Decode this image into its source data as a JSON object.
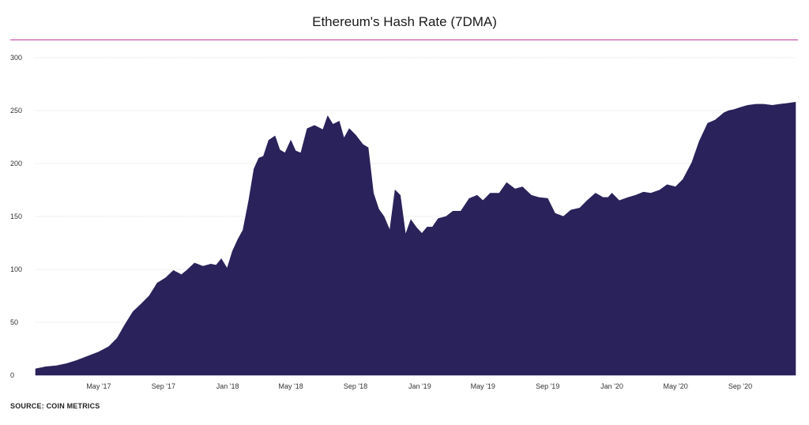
{
  "chart_title": "Ethereum's Hash Rate (7DMA)",
  "source": "SOURCE: COIN METRICS",
  "colors": {
    "area": "#2a225a",
    "title_rule": "#c23aa0",
    "grid": "#e2e2e2",
    "tick_text": "#333333"
  },
  "chart_data": {
    "type": "area",
    "title": "Ethereum's Hash Rate (7DMA)",
    "xlabel": "",
    "ylabel": "",
    "ylim": [
      0,
      300
    ],
    "yticks": [
      0,
      50,
      100,
      150,
      200,
      250,
      300
    ],
    "grid": true,
    "legend": "none",
    "x_range": [
      "2017-01-01",
      "2020-12-15"
    ],
    "x_ticks": [
      {
        "date": "2017-05-01",
        "label": "May '17"
      },
      {
        "date": "2017-09-01",
        "label": "Sep '17"
      },
      {
        "date": "2018-01-01",
        "label": "Jan '18"
      },
      {
        "date": "2018-05-01",
        "label": "May '18"
      },
      {
        "date": "2018-09-01",
        "label": "Sep '18"
      },
      {
        "date": "2019-01-01",
        "label": "Jan '19"
      },
      {
        "date": "2019-05-01",
        "label": "May '19"
      },
      {
        "date": "2019-09-01",
        "label": "Sep '19"
      },
      {
        "date": "2020-01-01",
        "label": "Jan '20"
      },
      {
        "date": "2020-05-01",
        "label": "May '20"
      },
      {
        "date": "2020-09-01",
        "label": "Sep '20"
      }
    ],
    "series": [
      {
        "x": [
          "2017-01-01",
          "2017-01-20",
          "2017-02-10",
          "2017-03-01",
          "2017-03-20",
          "2017-04-10",
          "2017-05-01",
          "2017-05-20",
          "2017-06-05",
          "2017-06-20",
          "2017-07-05",
          "2017-07-20",
          "2017-08-05",
          "2017-08-20",
          "2017-09-05",
          "2017-09-20",
          "2017-10-05",
          "2017-10-15",
          "2017-10-30",
          "2017-11-15",
          "2017-11-30",
          "2017-12-10",
          "2017-12-20",
          "2017-12-31",
          "2018-01-10",
          "2018-01-20",
          "2018-01-30",
          "2018-02-10",
          "2018-02-20",
          "2018-03-01",
          "2018-03-10",
          "2018-03-20",
          "2018-04-01",
          "2018-04-10",
          "2018-04-20",
          "2018-05-01",
          "2018-05-10",
          "2018-05-20",
          "2018-06-01",
          "2018-06-15",
          "2018-07-01",
          "2018-07-10",
          "2018-07-20",
          "2018-08-01",
          "2018-08-10",
          "2018-08-20",
          "2018-09-01",
          "2018-09-15",
          "2018-09-25",
          "2018-10-05",
          "2018-10-15",
          "2018-10-25",
          "2018-11-05",
          "2018-11-15",
          "2018-11-25",
          "2018-12-05",
          "2018-12-15",
          "2018-12-25",
          "2019-01-05",
          "2019-01-15",
          "2019-01-25",
          "2019-02-05",
          "2019-02-20",
          "2019-03-05",
          "2019-03-20",
          "2019-04-05",
          "2019-04-20",
          "2019-05-01",
          "2019-05-15",
          "2019-06-01",
          "2019-06-15",
          "2019-07-01",
          "2019-07-15",
          "2019-08-01",
          "2019-08-15",
          "2019-09-01",
          "2019-09-15",
          "2019-10-01",
          "2019-10-15",
          "2019-11-01",
          "2019-11-15",
          "2019-12-01",
          "2019-12-15",
          "2019-12-25",
          "2020-01-01",
          "2020-01-15",
          "2020-02-01",
          "2020-02-15",
          "2020-03-01",
          "2020-03-15",
          "2020-04-01",
          "2020-04-15",
          "2020-05-01",
          "2020-05-15",
          "2020-06-01",
          "2020-06-15",
          "2020-07-01",
          "2020-07-15",
          "2020-08-01",
          "2020-08-10",
          "2020-08-20",
          "2020-09-01",
          "2020-09-15",
          "2020-10-01",
          "2020-10-15",
          "2020-11-01",
          "2020-11-15",
          "2020-12-01",
          "2020-12-15"
        ],
        "y": [
          6,
          8,
          9,
          11,
          14,
          18,
          22,
          27,
          35,
          48,
          60,
          67,
          75,
          87,
          92,
          99,
          95,
          99,
          106,
          103,
          105,
          104,
          110,
          101,
          117,
          128,
          137,
          165,
          195,
          205,
          207,
          222,
          226,
          213,
          210,
          222,
          212,
          210,
          233,
          236,
          232,
          245,
          237,
          240,
          224,
          233,
          227,
          218,
          215,
          172,
          157,
          150,
          137,
          175,
          170,
          133,
          147,
          140,
          134,
          140,
          140,
          148,
          150,
          155,
          155,
          167,
          170,
          165,
          172,
          172,
          182,
          176,
          178,
          170,
          168,
          167,
          153,
          150,
          156,
          158,
          165,
          172,
          168,
          168,
          172,
          165,
          168,
          170,
          173,
          172,
          175,
          180,
          178,
          185,
          201,
          221,
          238,
          241,
          248,
          250,
          251,
          253,
          255,
          256,
          256,
          255,
          256,
          257,
          258
        ]
      }
    ]
  }
}
